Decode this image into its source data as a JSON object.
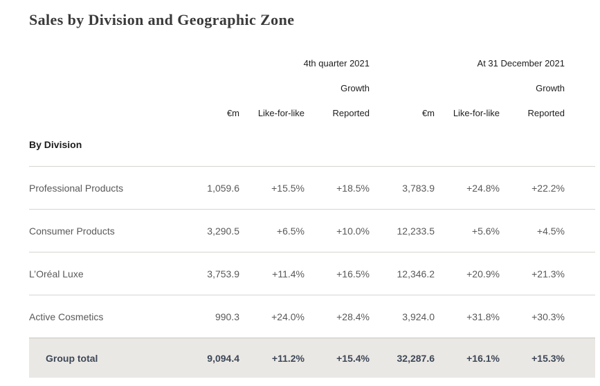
{
  "page": {
    "title": "Sales by Division and Geographic Zone"
  },
  "table": {
    "period_headers": {
      "q4": "4th quarter 2021",
      "ytd": "At 31 December 2021",
      "growth": "Growth"
    },
    "column_headers": {
      "em": "€m",
      "lfl": "Like-for-like",
      "reported": "Reported"
    },
    "section_label": "By Division",
    "rows": [
      {
        "label": "Professional Products",
        "q4_em": "1,059.6",
        "q4_lfl": "+15.5%",
        "q4_rep": "+18.5%",
        "ytd_em": "3,783.9",
        "ytd_lfl": "+24.8%",
        "ytd_rep": "+22.2%"
      },
      {
        "label": "Consumer Products",
        "q4_em": "3,290.5",
        "q4_lfl": "+6.5%",
        "q4_rep": "+10.0%",
        "ytd_em": "12,233.5",
        "ytd_lfl": "+5.6%",
        "ytd_rep": "+4.5%"
      },
      {
        "label": "L’Oréal Luxe",
        "q4_em": "3,753.9",
        "q4_lfl": "+11.4%",
        "q4_rep": "+16.5%",
        "ytd_em": "12,346.2",
        "ytd_lfl": "+20.9%",
        "ytd_rep": "+21.3%"
      },
      {
        "label": "Active Cosmetics",
        "q4_em": "990.3",
        "q4_lfl": "+24.0%",
        "q4_rep": "+28.4%",
        "ytd_em": "3,924.0",
        "ytd_lfl": "+31.8%",
        "ytd_rep": "+30.3%"
      }
    ],
    "total_row": {
      "label": "Group total",
      "q4_em": "9,094.4",
      "q4_lfl": "+11.2%",
      "q4_rep": "+15.4%",
      "ytd_em": "32,287.6",
      "ytd_lfl": "+16.1%",
      "ytd_rep": "+15.3%"
    }
  },
  "colors": {
    "page_bg": "#ffffff",
    "title_color": "#3a3a3a",
    "header_color": "#1d1d1d",
    "body_color": "#595959",
    "divider_color": "#d6d4d0",
    "total_bg": "#eae8e4",
    "total_border": "#c9c6c1",
    "total_color": "#3d4757"
  }
}
